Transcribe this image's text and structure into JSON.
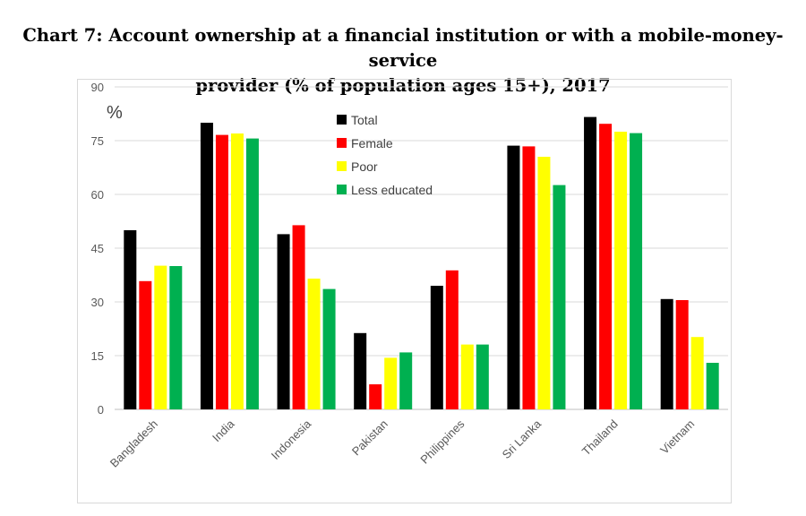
{
  "title_line1": "Chart 7: Account ownership at a financial institution or with a mobile-money-service",
  "title_line2": "provider (% of population ages 15+), 2017",
  "chart_data": {
    "type": "bar",
    "title": "Chart 7: Account ownership at a financial institution or with a mobile-money-service provider (% of population ages 15+), 2017",
    "unit_label": "%",
    "categories": [
      "Bangladesh",
      "India",
      "Indonesia",
      "Pakistan",
      "Philippines",
      "Sri Lanka",
      "Thailand",
      "Vietnam"
    ],
    "series": [
      {
        "name": "Total",
        "color": "#000000",
        "values": [
          50.0,
          80.0,
          48.9,
          21.3,
          34.5,
          73.6,
          81.6,
          30.8
        ]
      },
      {
        "name": "Female",
        "color": "#ff0000",
        "values": [
          35.8,
          76.6,
          51.4,
          7.0,
          38.8,
          73.4,
          79.7,
          30.5
        ]
      },
      {
        "name": "Poor",
        "color": "#ffff00",
        "values": [
          40.1,
          77.0,
          36.5,
          14.4,
          18.1,
          70.5,
          77.5,
          20.2
        ]
      },
      {
        "name": "Less educated",
        "color": "#00b050",
        "values": [
          40.0,
          75.6,
          33.6,
          15.9,
          18.1,
          62.6,
          77.1,
          13.0
        ]
      }
    ],
    "ylim": [
      0,
      90
    ],
    "yticks": [
      0,
      15,
      30,
      45,
      60,
      75,
      90
    ],
    "grid": true,
    "legend_position": "top-center"
  }
}
